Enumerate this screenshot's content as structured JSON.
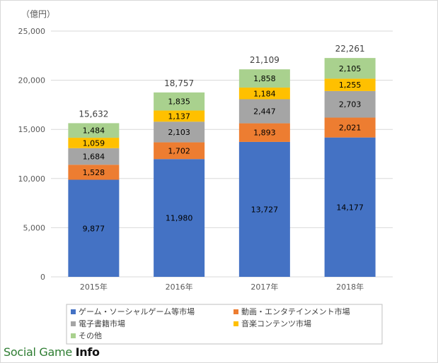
{
  "chart_data": {
    "type": "bar",
    "stacked": true,
    "unit_label": "（億円）",
    "categories": [
      "2015年",
      "2016年",
      "2017年",
      "2018年"
    ],
    "series": [
      {
        "name": "ゲーム・ソーシャルゲーム等市場",
        "color": "#4472c4",
        "values": [
          9877,
          11980,
          13727,
          14177
        ],
        "labels": [
          "9,877",
          "11,980",
          "13,727",
          "14,177"
        ]
      },
      {
        "name": "動画・エンタテインメント市場",
        "color": "#ed7d31",
        "values": [
          1528,
          1702,
          1893,
          2021
        ],
        "labels": [
          "1,528",
          "1,702",
          "1,893",
          "2,021"
        ]
      },
      {
        "name": "電子書籍市場",
        "color": "#a5a5a5",
        "values": [
          1684,
          2103,
          2447,
          2703
        ],
        "labels": [
          "1,684",
          "2,103",
          "2,447",
          "2,703"
        ]
      },
      {
        "name": "音楽コンテンツ市場",
        "color": "#ffc000",
        "values": [
          1059,
          1137,
          1184,
          1255
        ],
        "labels": [
          "1,059",
          "1,137",
          "1,184",
          "1,255"
        ]
      },
      {
        "name": "その他",
        "color": "#a9d18e",
        "values": [
          1484,
          1835,
          1858,
          2105
        ],
        "labels": [
          "1,484",
          "1,835",
          "1,858",
          "2,105"
        ]
      }
    ],
    "totals": [
      15632,
      18757,
      21109,
      22261
    ],
    "total_labels": [
      "15,632",
      "18,757",
      "21,109",
      "22,261"
    ],
    "ylim": [
      0,
      25000
    ],
    "yticks": [
      0,
      5000,
      10000,
      15000,
      20000,
      25000
    ],
    "ytick_labels": [
      "0",
      "5,000",
      "10,000",
      "15,000",
      "20,000",
      "25,000"
    ],
    "grid": true,
    "legend_position": "bottom"
  },
  "watermark": {
    "part1": "Social Game ",
    "part2": "Info"
  }
}
